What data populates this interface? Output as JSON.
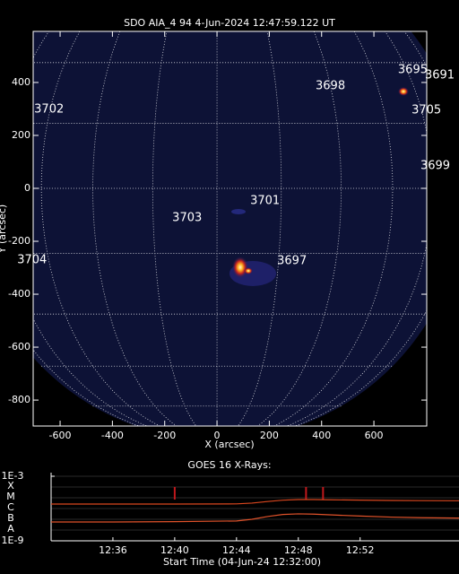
{
  "chart_data": [
    {
      "type": "image",
      "title": "SDO AIA_4 94  4-Jun-2024 12:47:59.122 UT",
      "x_label": "X (arcsec)",
      "y_label": "Y (arcsec)",
      "xlim": [
        -703,
        802
      ],
      "ylim": [
        -898,
        593
      ],
      "xticks": [
        -600,
        -400,
        -200,
        0,
        200,
        400,
        600
      ],
      "yticks": [
        400,
        200,
        0,
        -200,
        -400,
        -600,
        -800
      ],
      "annotations": [
        {
          "text": "3695",
          "x": 692,
          "y": 447
        },
        {
          "text": "3691",
          "x": 795,
          "y": 427
        },
        {
          "text": "3698",
          "x": 377,
          "y": 386
        },
        {
          "text": "3702",
          "x": -699,
          "y": 298
        },
        {
          "text": "3705",
          "x": 744,
          "y": 295
        },
        {
          "text": "3699",
          "x": 778,
          "y": 85
        },
        {
          "text": "3701",
          "x": 127,
          "y": -47
        },
        {
          "text": "3703",
          "x": -171,
          "y": -112
        },
        {
          "text": "3704",
          "x": -764,
          "y": -271
        },
        {
          "text": "3697",
          "x": 230,
          "y": -275
        }
      ]
    },
    {
      "type": "line",
      "title": "GOES 16 X-Rays:",
      "x_label": "Start Time (04-Jun-24 12:32:00)",
      "log_scale": true,
      "xlim": [
        0,
        26.4
      ],
      "ylim": [
        1e-09,
        0.001
      ],
      "xticks": [
        {
          "value": 4,
          "label": "12:36"
        },
        {
          "value": 8,
          "label": "12:40"
        },
        {
          "value": 12,
          "label": "12:44"
        },
        {
          "value": 16,
          "label": "12:48"
        },
        {
          "value": 20,
          "label": "12:52"
        }
      ],
      "yticks": [
        {
          "value": 0.001,
          "label": "1E-3"
        },
        {
          "value": 1e-09,
          "label": "1E-9"
        }
      ],
      "class_labels": [
        "X",
        "M",
        "C",
        "B",
        "A"
      ],
      "flare_markers": [
        8.0,
        16.5,
        17.6
      ],
      "x": [
        0,
        4,
        8,
        12,
        13,
        14,
        15,
        16,
        17,
        18,
        20,
        22,
        24,
        26.4
      ],
      "series": [
        {
          "color": "#d8461e",
          "values": [
            2.6e-06,
            2.6e-06,
            2.6e-06,
            2.7e-06,
            3.2e-06,
            4.5e-06,
            6e-06,
            6.8e-06,
            6.8e-06,
            6.5e-06,
            6e-06,
            5.6e-06,
            5.4e-06,
            5.3e-06
          ]
        },
        {
          "color": "#e0522a",
          "values": [
            5.6e-08,
            5.6e-08,
            6e-08,
            7e-08,
            1e-07,
            1.8e-07,
            2.8e-07,
            3.2e-07,
            3e-07,
            2.6e-07,
            2e-07,
            1.6e-07,
            1.4e-07,
            1.3e-07
          ]
        }
      ]
    }
  ]
}
